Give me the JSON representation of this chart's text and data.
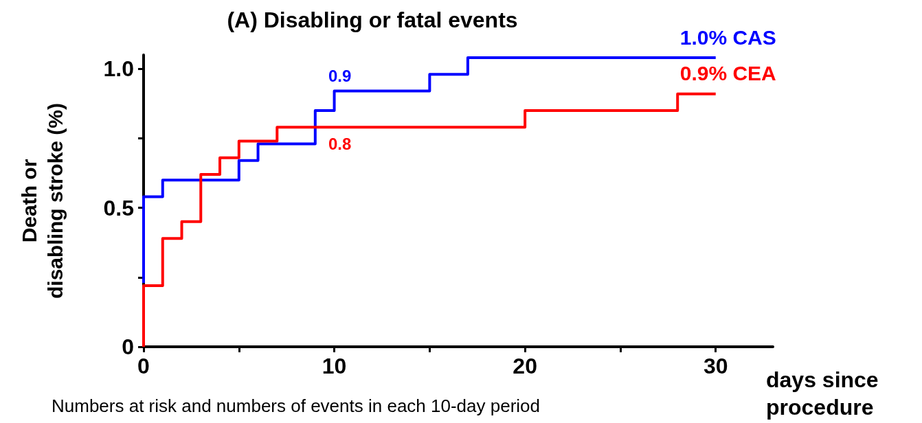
{
  "chart_data": {
    "type": "step",
    "title": "(A) Disabling or fatal events",
    "xlabel": "days since\nprocedure",
    "ylabel": "Death or\ndisabling stroke (%)",
    "series": [
      {
        "name": "1.0% CAS",
        "color": "#0000ff",
        "x": [
          0,
          0,
          1,
          5,
          6,
          9,
          10,
          15,
          17,
          30
        ],
        "values": [
          0.23,
          0.54,
          0.6,
          0.67,
          0.73,
          0.85,
          0.92,
          0.98,
          1.04,
          1.04
        ]
      },
      {
        "name": "0.9% CEA",
        "color": "#ff0000",
        "x": [
          0,
          0,
          1,
          2,
          3,
          4,
          5,
          7,
          20,
          28,
          30
        ],
        "values": [
          0,
          0.22,
          0.39,
          0.45,
          0.62,
          0.68,
          0.74,
          0.79,
          0.85,
          0.91,
          0.91
        ]
      }
    ],
    "annotations": [
      {
        "text": "0.9",
        "x": 10,
        "y": 0.92
      },
      {
        "text": "0.8",
        "x": 10,
        "y": 0.79
      },
      "Numbers at risk and numbers of events in each 10-day period"
    ],
    "xlim": [
      0,
      33
    ],
    "xticks": [
      0,
      {
        "value": 5,
        "label": null
      },
      10,
      {
        "value": 15,
        "label": null
      },
      20,
      {
        "value": 25,
        "label": null
      },
      30
    ],
    "ylim": [
      0,
      1.05
    ],
    "yticks": [
      0,
      {
        "value": 0.25,
        "label": null
      },
      0.5,
      {
        "value": 0.75,
        "label": null
      },
      {
        "value": 1,
        "label": "1.0"
      }
    ],
    "grid": false,
    "legend": false,
    "marker": "none",
    "line_style": "solid"
  }
}
